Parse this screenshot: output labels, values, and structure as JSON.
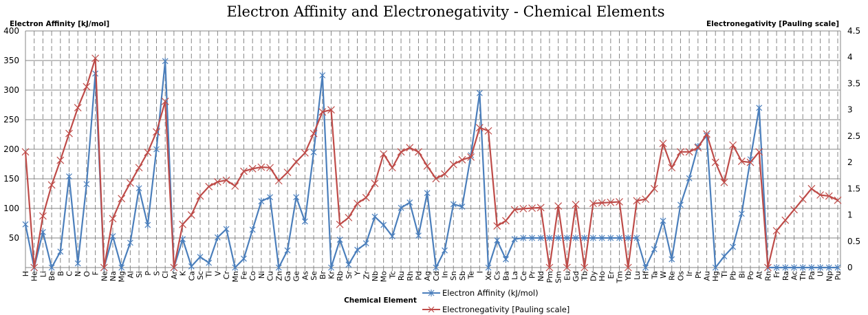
{
  "chart_data": {
    "type": "line",
    "title": "Electron Affinity and Electronegativity - Chemical Elements",
    "xlabel": "Chemical Element",
    "ylabel": "Electron Affinity [kJ/mol]",
    "y2label": "Electronegativity  [Pauling scale]",
    "ylim": [
      0,
      400
    ],
    "y2lim": [
      0,
      4.5
    ],
    "yticks": [
      "50",
      "100",
      "150",
      "200",
      "250",
      "300",
      "350",
      "400"
    ],
    "y2ticks": [
      "0",
      "0.5",
      "1",
      "1.5",
      "2",
      "2.5",
      "3",
      "3.5",
      "4",
      "4.5"
    ],
    "grid": true,
    "legend": "bottom-center",
    "categories": [
      "H",
      "He",
      "Li",
      "Be",
      "B",
      "C",
      "N",
      "O",
      "F",
      "Ne",
      "Na",
      "Mg",
      "Al",
      "Si",
      "P",
      "S",
      "Cl",
      "Ar",
      "K",
      "Ca",
      "Sc",
      "Ti",
      "V",
      "Cr",
      "Mn",
      "Fe",
      "Co",
      "Ni",
      "Cu",
      "Zn",
      "Ga",
      "Ge",
      "As",
      "Se",
      "Br",
      "Kr",
      "Rb",
      "Sr",
      "Y",
      "Zr",
      "Nb",
      "Mo",
      "Tc",
      "Ru",
      "Rh",
      "Pd",
      "Ag",
      "Cd",
      "In",
      "Sn",
      "Sb",
      "Te",
      "I",
      "Xe",
      "Cs",
      "Ba",
      "La",
      "Ce",
      "Pr",
      "Nd",
      "Pm",
      "Sm",
      "Eu",
      "Gd",
      "Tb",
      "Dy",
      "Ho",
      "Er",
      "Tm",
      "Yb",
      "Lu",
      "Hf",
      "Ta",
      "W",
      "Re",
      "Os",
      "Ir",
      "Pt",
      "Au",
      "Hg",
      "Tl",
      "Pb",
      "Bi",
      "Po",
      "At",
      "Rn",
      "Fr",
      "Ra",
      "Ac",
      "Th",
      "Pa",
      "U",
      "Np",
      "Pu"
    ],
    "series": [
      {
        "name": "Electron Affinity (kJ/mol)",
        "axis": "left",
        "color": "#4a7ebb",
        "values": [
          73,
          0,
          60,
          0,
          27,
          154,
          7,
          141,
          328,
          0,
          53,
          0,
          42,
          134,
          72,
          200,
          349,
          0,
          48,
          2,
          18,
          8,
          51,
          65,
          0,
          15,
          64,
          112,
          119,
          0,
          29,
          119,
          78,
          195,
          325,
          0,
          47,
          5,
          30,
          41,
          86,
          72,
          53,
          101,
          110,
          54,
          126,
          0,
          29,
          107,
          103,
          190,
          295,
          0,
          46,
          14,
          48,
          50,
          50,
          50,
          50,
          50,
          50,
          50,
          50,
          50,
          50,
          50,
          50,
          50,
          50,
          0,
          31,
          79,
          14,
          106,
          151,
          205,
          223,
          0,
          19,
          35,
          91,
          183,
          270,
          0,
          0,
          0,
          0,
          0,
          0,
          0,
          0,
          0
        ]
      },
      {
        "name": "Electronegativity [Pauling scale]",
        "axis": "right",
        "color": "#be4b48",
        "values": [
          2.2,
          0,
          0.98,
          1.57,
          2.04,
          2.55,
          3.04,
          3.44,
          3.98,
          0,
          0.93,
          1.31,
          1.61,
          1.9,
          2.19,
          2.58,
          3.16,
          0,
          0.82,
          1.0,
          1.36,
          1.54,
          1.63,
          1.66,
          1.55,
          1.83,
          1.88,
          1.91,
          1.9,
          1.65,
          1.81,
          2.01,
          2.18,
          2.55,
          2.96,
          3.0,
          0.82,
          0.95,
          1.22,
          1.33,
          1.6,
          2.16,
          1.9,
          2.2,
          2.28,
          2.2,
          1.93,
          1.69,
          1.78,
          1.96,
          2.05,
          2.1,
          2.66,
          2.6,
          0.79,
          0.89,
          1.1,
          1.12,
          1.13,
          1.14,
          0,
          1.17,
          0,
          1.2,
          0,
          1.22,
          1.23,
          1.24,
          1.25,
          0,
          1.27,
          1.3,
          1.5,
          2.36,
          1.9,
          2.2,
          2.2,
          2.28,
          2.54,
          2.0,
          1.62,
          2.33,
          2.02,
          2.0,
          2.2,
          0,
          0.7,
          0.9,
          1.1,
          1.3,
          1.5,
          1.38,
          1.36,
          1.28
        ]
      }
    ]
  }
}
